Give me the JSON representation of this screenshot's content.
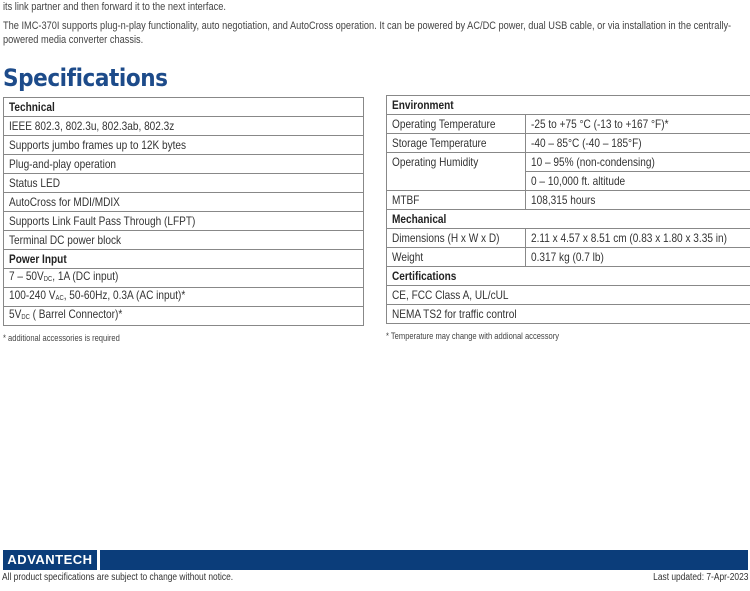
{
  "intro": {
    "line1": "its link partner and then forward it to the next interface.",
    "para2": "The IMC-370I supports plug-n-play functionality, auto negotiation, and AutoCross operation. It can be powered by AC/DC power, dual USB cable, or via installation in the centrally-powered media converter chassis."
  },
  "title": "Specifications",
  "left": {
    "technical_header": "Technical",
    "technical": [
      "IEEE 802.3, 802.3u, 802.3ab, 802.3z",
      "Supports jumbo frames up to 12K bytes",
      "Plug-and-play operation",
      "Status LED",
      "AutoCross for MDI/MDIX",
      "Supports Link Fault Pass Through (LFPT)",
      "Terminal DC power block"
    ],
    "power_header": "Power Input",
    "power": [
      {
        "pre": "7 – 50V",
        "sub": "DC",
        "post": ", 1A (DC input)"
      },
      {
        "pre": "100-240 V",
        "sub": "AC",
        "post": ", 50-60Hz, 0.3A (AC input)*"
      },
      {
        "pre": "5V",
        "sub": "DC",
        "post": " ( Barrel Connector)*"
      }
    ],
    "note": "* additional accessories is required"
  },
  "right": {
    "environment_header": "Environment",
    "op_temp": {
      "k": "Operating Temperature",
      "v": "-25 to +75 °C (-13 to +167 °F)*"
    },
    "st_temp": {
      "k": "Storage Temperature",
      "v": "-40 – 85°C (-40 – 185°F)"
    },
    "humidity": {
      "k": "Operating Humidity",
      "v1": "10 – 95% (non-condensing)",
      "v2": "0 – 10,000 ft. altitude"
    },
    "mtbf": {
      "k": "MTBF",
      "v": "108,315 hours"
    },
    "mechanical_header": "Mechanical",
    "dimensions": {
      "k": "Dimensions (H x W x D)",
      "v": "2.11 x 4.57 x 8.51 cm (0.83 x 1.80 x 3.35 in)"
    },
    "weight": {
      "k": "Weight",
      "v": "0.317 kg (0.7 lb)"
    },
    "cert_header": "Certifications",
    "certs": [
      "CE, FCC Class A, UL/cUL",
      "NEMA TS2 for traffic control"
    ],
    "note": "* Temperature may change with addional accessory"
  },
  "footer": {
    "logo": "ADVANTECH",
    "disclaimer": "All product specifications are subject to change without notice.",
    "updated": "Last updated: 7-Apr-2023",
    "brand_color": "#0b3d7a"
  }
}
